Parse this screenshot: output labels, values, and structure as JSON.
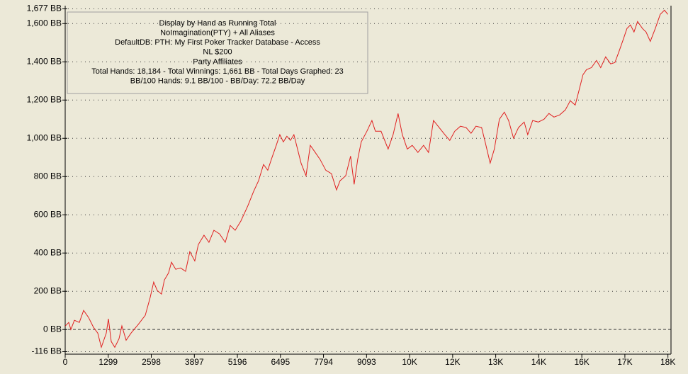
{
  "chart_data": {
    "type": "line",
    "annotation_lines": [
      "Display by Hand as Running Total",
      "NoImagination(PTY) + All Aliases",
      "DefaultDB: PTH: My First Poker Tracker Database  - Access",
      "NL $200",
      "Party  Affiliates",
      "Total Hands: 18,184 - Total Winnings: 1,661 BB - Total Days Graphed: 23",
      "BB/100 Hands: 9.1 BB/100 - BB/Day: 72.2 BB/Day"
    ],
    "color": "#e02020",
    "grid": true,
    "xlim": [
      0,
      18300
    ],
    "ylim": [
      -116,
      1677
    ],
    "xticks": [
      0,
      1299,
      2598,
      3897,
      5196,
      6495,
      7794,
      9093,
      {
        "value": 10392,
        "label": "10K"
      },
      {
        "value": 11691,
        "label": "12K"
      },
      {
        "value": 12990,
        "label": "13K"
      },
      {
        "value": 14289,
        "label": "14K"
      },
      {
        "value": 15588,
        "label": "16K"
      },
      {
        "value": 16887,
        "label": "17K"
      },
      {
        "value": 18186,
        "label": "18K"
      }
    ],
    "yticks": [
      {
        "value": -116,
        "label": "-116 BB"
      },
      {
        "value": 0,
        "label": "0 BB"
      },
      {
        "value": 200,
        "label": "200 BB"
      },
      {
        "value": 400,
        "label": "400 BB"
      },
      {
        "value": 600,
        "label": "600 BB"
      },
      {
        "value": 800,
        "label": "800 BB"
      },
      {
        "value": 1000,
        "label": "1,000 BB"
      },
      {
        "value": 1200,
        "label": "1,200 BB"
      },
      {
        "value": 1400,
        "label": "1,400 BB"
      },
      {
        "value": 1600,
        "label": "1,600 BB"
      },
      {
        "value": 1677,
        "label": "1,677 BB"
      }
    ],
    "x": [
      0,
      107,
      171,
      278,
      427,
      556,
      705,
      855,
      983,
      1090,
      1239,
      1304,
      1389,
      1496,
      1624,
      1710,
      1838,
      1987,
      2201,
      2415,
      2564,
      2671,
      2778,
      2906,
      2992,
      3120,
      3206,
      3334,
      3483,
      3633,
      3761,
      3910,
      4018,
      4188,
      4338,
      4488,
      4659,
      4830,
      4979,
      5129,
      5300,
      5513,
      5684,
      5834,
      5983,
      6112,
      6219,
      6368,
      6475,
      6582,
      6689,
      6796,
      6902,
      7009,
      7116,
      7266,
      7394,
      7544,
      7693,
      7864,
      8035,
      8185,
      8292,
      8463,
      8612,
      8719,
      8826,
      8933,
      9104,
      9254,
      9360,
      9531,
      9745,
      9895,
      10044,
      10172,
      10322,
      10471,
      10642,
      10813,
      10963,
      11112,
      11283,
      11454,
      11604,
      11753,
      11924,
      12095,
      12245,
      12394,
      12565,
      12672,
      12822,
      12950,
      13100,
      13250,
      13378,
      13528,
      13677,
      13848,
      13955,
      14105,
      14276,
      14447,
      14596,
      14746,
      14917,
      15088,
      15238,
      15388,
      15516,
      15623,
      15730,
      15879,
      16029,
      16158,
      16307,
      16457,
      16585,
      16713,
      16841,
      16948,
      17055,
      17162,
      17269,
      17419,
      17526,
      17654,
      17804,
      17953,
      18081,
      18184
    ],
    "values": [
      18,
      37,
      0,
      48,
      37,
      100,
      63,
      11,
      -19,
      -93,
      -19,
      56,
      -63,
      -93,
      -48,
      19,
      -56,
      -19,
      26,
      74,
      167,
      248,
      204,
      185,
      259,
      296,
      352,
      315,
      322,
      304,
      407,
      359,
      444,
      493,
      456,
      519,
      500,
      456,
      544,
      519,
      567,
      648,
      722,
      778,
      863,
      833,
      889,
      963,
      1019,
      981,
      1011,
      989,
      1019,
      944,
      870,
      804,
      963,
      926,
      889,
      833,
      815,
      730,
      778,
      804,
      907,
      759,
      889,
      981,
      1037,
      1093,
      1037,
      1037,
      944,
      1019,
      1130,
      1019,
      944,
      963,
      926,
      963,
      926,
      1093,
      1056,
      1019,
      989,
      1037,
      1063,
      1056,
      1026,
      1063,
      1056,
      981,
      870,
      944,
      1100,
      1137,
      1093,
      1000,
      1056,
      1085,
      1019,
      1093,
      1085,
      1100,
      1130,
      1111,
      1122,
      1148,
      1196,
      1174,
      1259,
      1333,
      1359,
      1370,
      1407,
      1370,
      1426,
      1389,
      1396,
      1456,
      1519,
      1574,
      1593,
      1556,
      1611,
      1574,
      1556,
      1507,
      1574,
      1648,
      1670,
      1648
    ]
  }
}
